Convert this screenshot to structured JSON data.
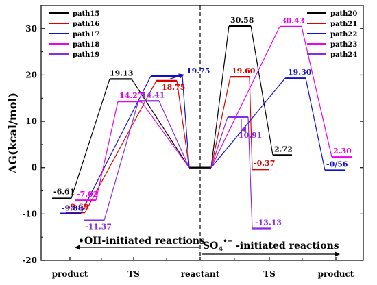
{
  "chart_data": {
    "type": "line",
    "ylabel": "ΔG(kcal/mol)",
    "ylim": [
      -20,
      35
    ],
    "yticks": [
      -20,
      -10,
      0,
      10,
      20,
      30
    ],
    "x_categories": [
      "product",
      "TS",
      "reactant",
      "TS",
      "product"
    ],
    "left_reaction_label": "•OH-initiated reactions",
    "right_reaction_label_main": "SO",
    "right_reaction_label_sub": "4",
    "right_reaction_label_sup": "•−",
    "right_reaction_label_tail": "-initiated reactions",
    "legend_left": [
      "path15",
      "path16",
      "path17",
      "path18",
      "path19"
    ],
    "legend_right": [
      "path20",
      "path21",
      "path22",
      "path23",
      "path24"
    ],
    "series": [
      {
        "name": "path15",
        "color": "#000000",
        "side": "left",
        "ts": 19.13,
        "product": -6.61,
        "ts_label": "19.13",
        "product_label": "-6.61"
      },
      {
        "name": "path16",
        "color": "#e00000",
        "side": "left",
        "ts": 18.75,
        "product": -9.69,
        "ts_label": "18.75",
        "product_label": "-9.69"
      },
      {
        "name": "path17",
        "color": "#1010cc",
        "side": "left",
        "ts": 19.75,
        "product": -9.88,
        "ts_label": "19.75",
        "product_label": "-9.88"
      },
      {
        "name": "path18",
        "color": "#ee00ee",
        "side": "left",
        "ts": 14.27,
        "product": -7.02,
        "ts_label": "14.27",
        "product_label": "-7.02"
      },
      {
        "name": "path19",
        "color": "#8a2be2",
        "side": "left",
        "ts": 14.41,
        "product": -11.37,
        "ts_label": "14.41",
        "product_label": "-11.37"
      },
      {
        "name": "path20",
        "color": "#000000",
        "side": "right",
        "ts": 30.58,
        "product": 2.72,
        "ts_label": "30.58",
        "product_label": "2.72"
      },
      {
        "name": "path21",
        "color": "#e00000",
        "side": "right",
        "ts": 19.6,
        "product": -0.37,
        "ts_label": "19.60",
        "product_label": "-0.37"
      },
      {
        "name": "path22",
        "color": "#1010cc",
        "side": "right",
        "ts": 19.3,
        "product": -0.56,
        "ts_label": "19.30",
        "product_label": "-0/56"
      },
      {
        "name": "path23",
        "color": "#ee00ee",
        "side": "right",
        "ts": 30.43,
        "product": 2.3,
        "ts_label": "30.43",
        "product_label": "2.30"
      },
      {
        "name": "path24",
        "color": "#8a2be2",
        "side": "right",
        "ts": 10.91,
        "product": -13.13,
        "ts_label": "10.91",
        "product_label": "-13.13"
      }
    ]
  }
}
